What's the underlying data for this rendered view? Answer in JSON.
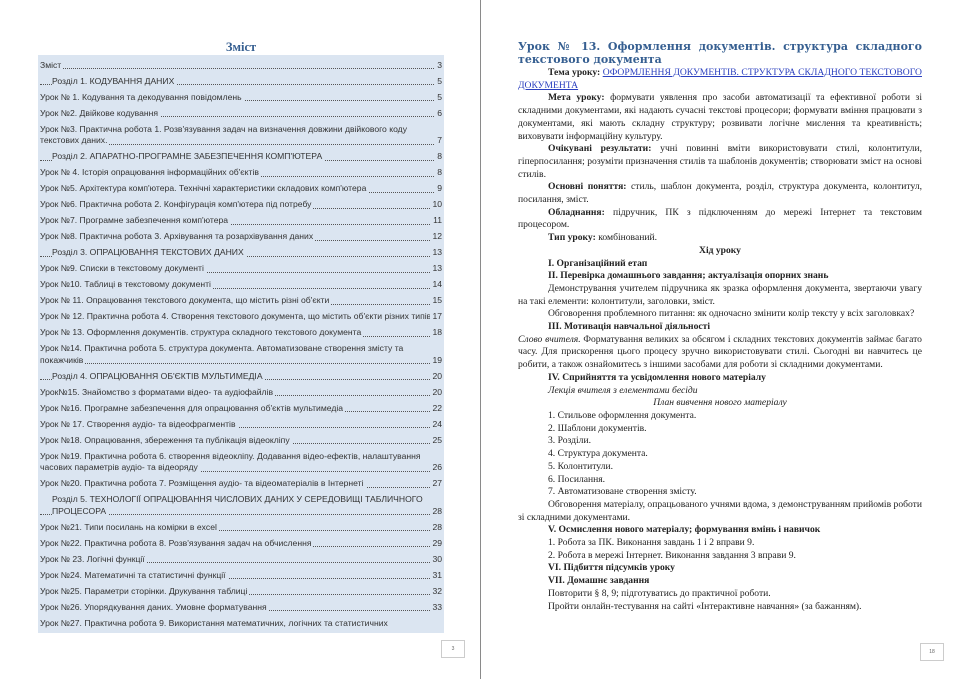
{
  "left_page": {
    "toc_title": "Зміст",
    "page_number": "3",
    "entries": [
      {
        "text": "Зміст",
        "page": "3",
        "section": false
      },
      {
        "text": "Розділ 1. КОДУВАННЯ ДАНИХ",
        "page": "5",
        "section": true
      },
      {
        "text": "Урок № 1. Кодування та декодування повідомлень",
        "page": "5",
        "section": false
      },
      {
        "text": "Урок №2. Двійкове кодування",
        "page": "6",
        "section": false
      },
      {
        "text": "Урок №3. Практична робота 1. Розв'язування задач на визначення довжини двійкового коду текстових даних.",
        "page": "7",
        "section": false
      },
      {
        "text": "Розділ 2. АПАРАТНО-ПРОГРАМНЕ ЗАБЕЗПЕЧЕННЯ КОМП'ЮТЕРА",
        "page": "8",
        "section": true
      },
      {
        "text": "Урок № 4. Історія опрацювання інформаційних об'єктів",
        "page": "8",
        "section": false
      },
      {
        "text": "Урок №5. Архітектура комп'ютера. Технічні характеристики складових комп'ютера",
        "page": "9",
        "section": false
      },
      {
        "text": "Урок №6. Практична робота 2. Конфігурація комп'ютера під потребу",
        "page": "10",
        "section": false
      },
      {
        "text": "Урок №7. Програмне забезпечення комп'ютера",
        "page": "11",
        "section": false
      },
      {
        "text": "Урок №8. Практична робота 3. Архівування та розархівування даних",
        "page": "12",
        "section": false
      },
      {
        "text": "Розділ 3. ОПРАЦЮВАННЯ ТЕКСТОВИХ ДАНИХ",
        "page": "13",
        "section": true
      },
      {
        "text": "Урок №9. Списки в текстовому документі",
        "page": "13",
        "section": false
      },
      {
        "text": "Урок №10. Таблиці в текстовому документі",
        "page": "14",
        "section": false
      },
      {
        "text": "Урок № 11. Опрацювання текстового документа, що містить різні об'єкти",
        "page": "15",
        "section": false
      },
      {
        "text": "Урок № 12. Практична робота 4. Створення текстового документа, що містить об'єкти різних типів",
        "page": "17",
        "section": false
      },
      {
        "text": "Урок № 13. Оформлення документів. структура складного текстового документа",
        "page": "18",
        "section": false
      },
      {
        "text": "Урок №14. Практична робота 5. структура документа. Автоматизоване створення змісту та покажчиків",
        "page": "19",
        "section": false
      },
      {
        "text": "Розділ 4. ОПРАЦЮВАННЯ ОБ'ЄКТІВ МУЛЬТИМЕДІА",
        "page": "20",
        "section": true
      },
      {
        "text": "Урок№15. Знайомство з форматами відео- та аудіофайлів",
        "page": "20",
        "section": false
      },
      {
        "text": "Урок №16. Програмне забезпечення для опрацювання об'єктів мультимедіа",
        "page": "22",
        "section": false
      },
      {
        "text": "Урок № 17. Створення аудіо- та відеофрагментів",
        "page": "24",
        "section": false
      },
      {
        "text": "Урок №18. Опрацювання, збереження та публікація відеокліпу",
        "page": "25",
        "section": false
      },
      {
        "text": "Урок №19. Практична робота 6. створення відеокліпу. Додавання відео-ефектів, налаштування часових параметрів аудіо- та відеоряду",
        "page": "26",
        "section": false
      },
      {
        "text": "Урок №20. Практична робота 7. Розміщення аудіо- та відеоматеріалів в Інтернеті",
        "page": "27",
        "section": false
      },
      {
        "text": "Розділ 5. ТЕХНОЛОГІЇ ОПРАЦЮВАННЯ ЧИСЛОВИХ ДАНИХ У СЕРЕДОВИЩІ ТАБЛИЧНОГО ПРОЦЕСОРА",
        "page": "28",
        "section": true
      },
      {
        "text": "Урок №21. Типи посилань на комірки в excel",
        "page": "28",
        "section": false
      },
      {
        "text": "Урок №22. Практична робота 8. Розв'язування задач на обчислення",
        "page": "29",
        "section": false
      },
      {
        "text": "Урок № 23. Логічні функції",
        "page": "30",
        "section": false
      },
      {
        "text": "Урок №24. Математичні та статистичні функції",
        "page": "31",
        "section": false
      },
      {
        "text": "Урок №25. Параметри сторінки. Друкування таблиці",
        "page": "32",
        "section": false
      },
      {
        "text": "Урок №26. Упорядкування даних. Умовне форматування",
        "page": "33",
        "section": false
      },
      {
        "text": "Урок №27. Практична робота 9. Використання математичних, логічних та статистичних",
        "page": null,
        "section": false
      }
    ]
  },
  "right_page": {
    "page_number": "18",
    "heading": "Урок № 13. Оформлення документів. структура складного текстового документа",
    "topic_label": "Тема уроку:",
    "topic_link": "ОФОРМЛЕННЯ ДОКУМЕНТІВ. СТРУКТУРА СКЛАДНОГО ТЕКСТОВОГО ДОКУМЕНТА",
    "goal_label": "Мета уроку:",
    "goal_text": " формувати уявлення про засоби автоматизації та ефективної роботи зі складними документами, які надають сучасні текстові процесори; формувати вміння працювати з документами, які мають складну структуру; розвивати логічне мислення та креативність; виховувати інформаційну культуру.",
    "results_label": "Очікувані результати:",
    "results_text": " учні повинні вміти використовувати стилі, колонтитули, гіперпосилання; розуміти призначення стилів та шаблонів документів; створювати зміст на основі стилів.",
    "concepts_label": "Основні поняття:",
    "concepts_text": " стиль, шаблон документа, розділ, структура документа, колонтитул, посилання, зміст.",
    "equipment_label": "Обладнання:",
    "equipment_text": " підручник, ПК з підключенням до мережі Інтернет та текстовим процесором.",
    "type_label": "Тип уроку:",
    "type_text": " комбінований.",
    "course_title": "Хід уроку",
    "stage1": "I. Організаційний етап",
    "stage2": "II. Перевірка домашнього завдання; актуалізація опорних знань",
    "stage2_p1": "Демонстрування учителем підручника як зразка оформлення документа, звертаючи увагу на такі елементи: колонтитули, заголовки, зміст.",
    "stage2_p2": "Обговорення проблемного питання: як одночасно змінити колір тексту у всіх заголовках?",
    "stage3": "III. Мотивація навчальної діяльності",
    "stage3_italic": "Слово вчителя.",
    "stage3_text": " Форматування великих за обсягом і складних текстових документів займає багато часу. Для прискорення цього процесу зручно використовувати стилі. Сьогодні ви навчитесь це робити, а також ознайомитесь з іншими засобами для роботи зі складними документами.",
    "stage4": "IV. Сприйняття та усвідомлення нового матеріалу",
    "stage4_lecture": "Лекція вчителя з елементами бесіди",
    "plan_title": "План вивчення нового матеріалу",
    "plan": [
      "1. Стильове оформлення документа.",
      "2. Шаблони документів.",
      "3. Розділи.",
      "4. Структура документа.",
      "5. Колонтитули.",
      "6. Посилання.",
      "7. Автоматизоване створення змісту."
    ],
    "stage4_discussion": "Обговорення матеріалу, опрацьованого учнями вдома, з демонструванням прийомів роботи зі складними документами.",
    "stage5": "V. Осмислення нового матеріалу; формування вмінь і навичок",
    "stage5_items": [
      "1. Робота за ПК. Виконання завдань 1 і 2 вправи 9.",
      "2. Робота в мережі Інтернет. Виконання завдання 3 вправи 9."
    ],
    "stage6": "VI. Підбиття підсумків уроку",
    "stage7": "VII. Домашнє завдання",
    "homework1": "Повторити § 8, 9; підготуватись до практичної роботи.",
    "homework2": "Пройти онлайн-тестування на сайті «Інтерактивне навчання» (за бажанням)."
  }
}
